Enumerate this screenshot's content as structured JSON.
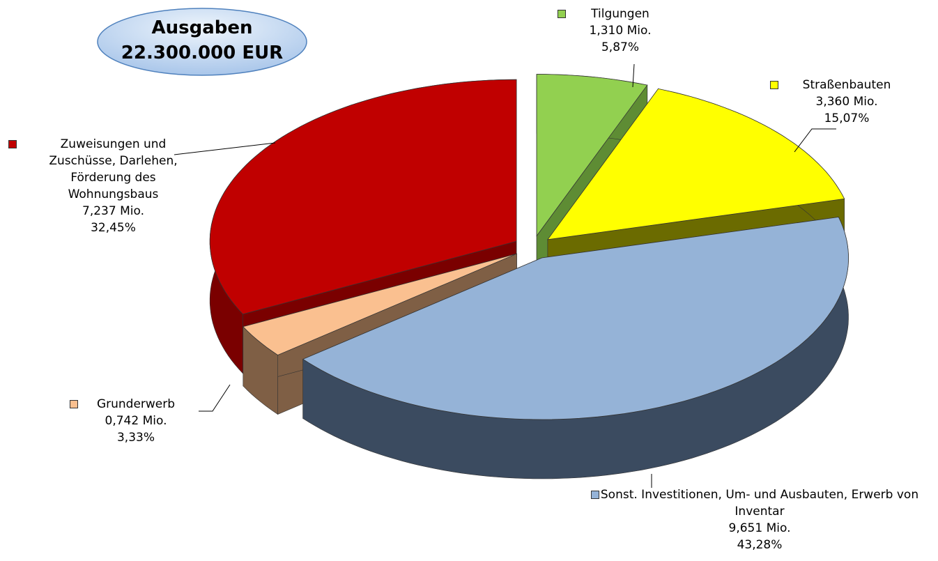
{
  "chart_data": {
    "type": "pie3d",
    "title": "Ausgaben",
    "subtitle": "22.300.000 EUR",
    "categories": [
      "Tilgungen",
      "Straßenbauten",
      "Sonst. Investitionen, Um- und Ausbauten, Erwerb von Inventar",
      "Grunderwerb",
      "Zuweisungen und Zuschüsse, Darlehen, Förderung des Wohnungsbaus"
    ],
    "values": [
      5.87,
      15.07,
      43.28,
      3.33,
      32.45
    ],
    "value_labels": [
      "5,87%",
      "15,07%",
      "43,28%",
      "3,33%",
      "32,45%"
    ],
    "amounts": [
      1.31,
      3.36,
      9.651,
      0.742,
      7.237
    ],
    "amount_labels": [
      "1,310 Mio.",
      "3,360 Mio.",
      "9,651 Mio.",
      "0,742 Mio.",
      "7,237 Mio."
    ],
    "colors": [
      "#92d050",
      "#ffff00",
      "#95b3d7",
      "#fac090",
      "#c00000"
    ],
    "side_colors": [
      "#5e8c34",
      "#6b6b00",
      "#3b4b60",
      "#7f5f45",
      "#7a0000"
    ]
  }
}
